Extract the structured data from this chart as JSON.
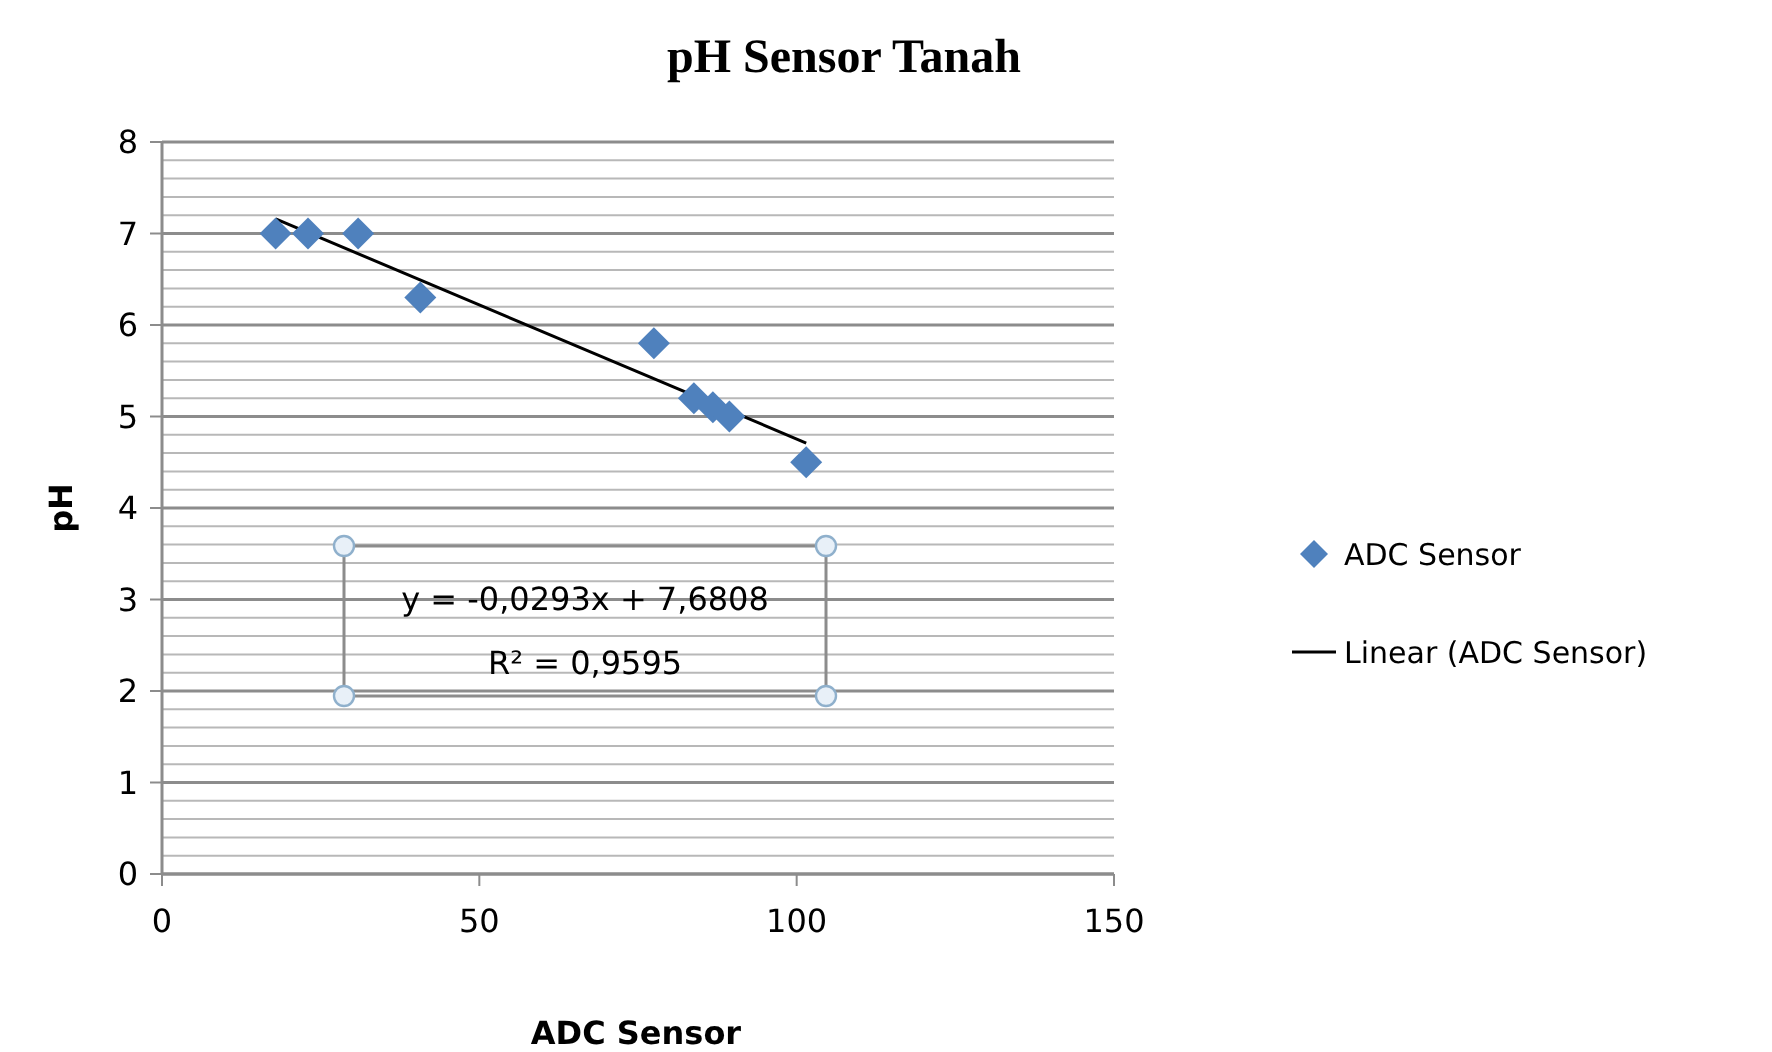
{
  "chart_data": {
    "type": "scatter",
    "title": "pH Sensor Tanah",
    "xlabel": "ADC Sensor",
    "ylabel": "pH",
    "xlim": [
      0,
      150
    ],
    "xticks": [
      0,
      50,
      100,
      150
    ],
    "ylim": [
      0,
      8
    ],
    "yticks": [
      0,
      {
        "value": 0.2,
        "label": null
      },
      {
        "value": 0.4,
        "label": null
      },
      {
        "value": 0.6,
        "label": null
      },
      {
        "value": 0.8,
        "label": null
      },
      1,
      {
        "value": 1.2,
        "label": null
      },
      {
        "value": 1.4,
        "label": null
      },
      {
        "value": 1.6,
        "label": null
      },
      {
        "value": 1.8,
        "label": null
      },
      2,
      {
        "value": 2.2,
        "label": null
      },
      {
        "value": 2.4,
        "label": null
      },
      {
        "value": 2.6,
        "label": null
      },
      {
        "value": 2.8,
        "label": null
      },
      3,
      {
        "value": 3.2,
        "label": null
      },
      {
        "value": 3.4,
        "label": null
      },
      {
        "value": 3.6,
        "label": null
      },
      {
        "value": 3.8,
        "label": null
      },
      4,
      {
        "value": 4.2,
        "label": null
      },
      {
        "value": 4.4,
        "label": null
      },
      {
        "value": 4.6,
        "label": null
      },
      {
        "value": 4.8,
        "label": null
      },
      5,
      {
        "value": 5.2,
        "label": null
      },
      {
        "value": 5.4,
        "label": null
      },
      {
        "value": 5.6,
        "label": null
      },
      {
        "value": 5.8,
        "label": null
      },
      6,
      {
        "value": 6.2,
        "label": null
      },
      {
        "value": 6.4,
        "label": null
      },
      {
        "value": 6.6,
        "label": null
      },
      {
        "value": 6.8,
        "label": null
      },
      7,
      {
        "value": 7.2,
        "label": null
      },
      {
        "value": 7.4,
        "label": null
      },
      {
        "value": 7.6,
        "label": null
      },
      {
        "value": 7.8,
        "label": null
      },
      8
    ],
    "grid": "y",
    "legend": "right",
    "series": [
      {
        "name": "ADC Sensor",
        "marker": "diamond",
        "color": "#4f81bd",
        "x": [
          17.9,
          23,
          30.9,
          40.7,
          77.5,
          83.8,
          86.8,
          89.4,
          101.5
        ],
        "values": [
          7.0,
          7.0,
          7.0,
          6.3,
          5.8,
          5.2,
          5.1,
          5.0,
          4.5
        ]
      },
      {
        "name": "Linear (ADC Sensor)",
        "type": "line",
        "marker": "none",
        "line_style": "solid",
        "color": "#000000",
        "x": [
          17.9,
          101.5
        ],
        "values": [
          7.16,
          4.71
        ]
      }
    ],
    "annotations": [
      "y = -0,0293x + 7,6808",
      "R² = 0,9595"
    ]
  }
}
